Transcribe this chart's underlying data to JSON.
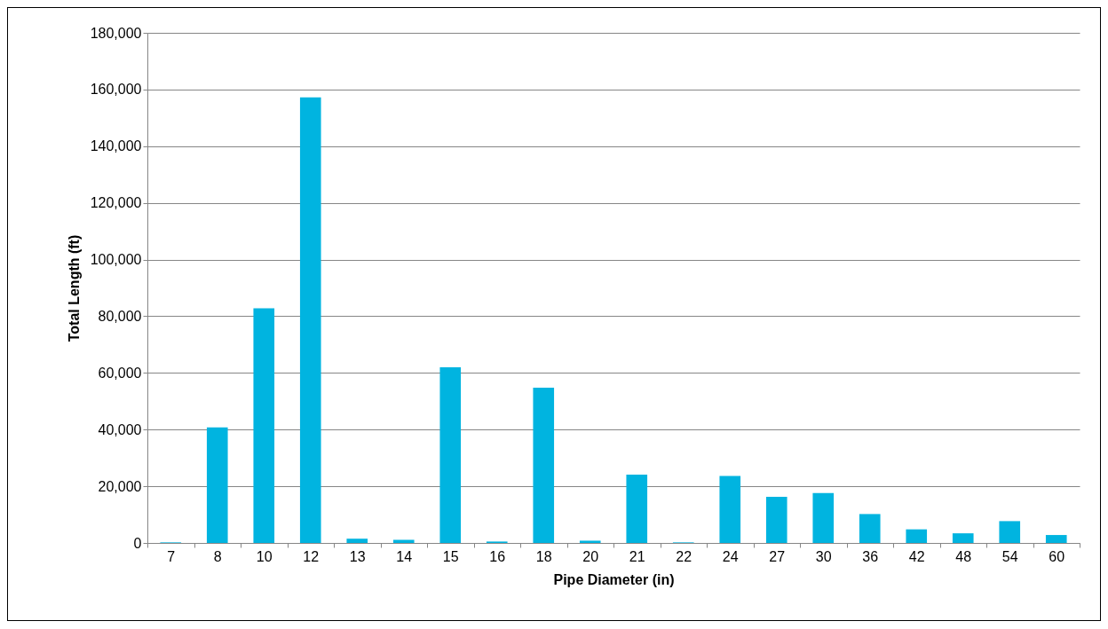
{
  "chart_data": {
    "type": "bar",
    "xlabel": "Pipe Diameter (in)",
    "ylabel": "Total Length (ft)",
    "categories": [
      "7",
      "8",
      "10",
      "12",
      "13",
      "14",
      "15",
      "16",
      "18",
      "20",
      "21",
      "22",
      "24",
      "27",
      "30",
      "36",
      "42",
      "48",
      "54",
      "60"
    ],
    "values": [
      200,
      40800,
      82800,
      157200,
      1500,
      1100,
      62000,
      500,
      54800,
      800,
      24100,
      200,
      23600,
      16300,
      17600,
      10200,
      4800,
      3400,
      7700,
      2800
    ],
    "color": "#00b4e0",
    "ylim": [
      0,
      180000
    ],
    "yticks": [
      {
        "value": 0,
        "label": "0"
      },
      {
        "value": 20000,
        "label": "20,000"
      },
      {
        "value": 40000,
        "label": "40,000"
      },
      {
        "value": 60000,
        "label": "60,000"
      },
      {
        "value": 80000,
        "label": "80,000"
      },
      {
        "value": 100000,
        "label": "100,000"
      },
      {
        "value": 120000,
        "label": "120,000"
      },
      {
        "value": 140000,
        "label": "140,000"
      },
      {
        "value": 160000,
        "label": "160,000"
      },
      {
        "value": 180000,
        "label": "180,000"
      }
    ],
    "grid": "y"
  }
}
